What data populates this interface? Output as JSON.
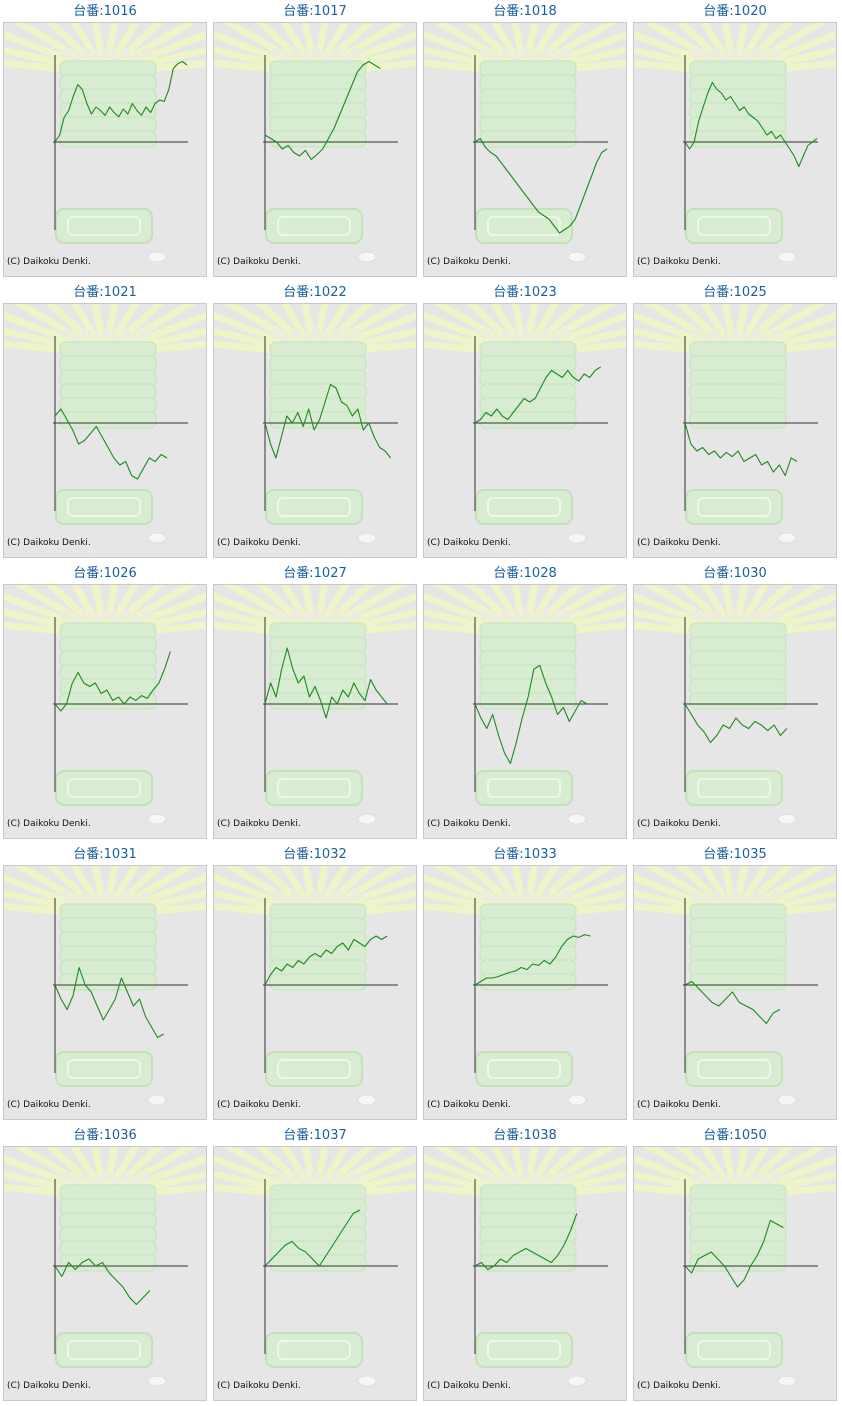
{
  "copyright": "(C) Daikoku Denki.",
  "colors": {
    "title": "#1a5fa0",
    "line": "#1c8a1c",
    "axis": "#333333",
    "panel": "#e6e6e6",
    "rays": "#eef5c8",
    "machine": "#d7ecd1"
  },
  "chart_data": [
    {
      "type": "line",
      "title": "台番:1016",
      "values": [
        0,
        0.1,
        0.35,
        0.45,
        0.65,
        0.82,
        0.75,
        0.55,
        0.4,
        0.5,
        0.45,
        0.38,
        0.5,
        0.42,
        0.36,
        0.47,
        0.4,
        0.55,
        0.45,
        0.38,
        0.5,
        0.42,
        0.55,
        0.6,
        0.58,
        0.75,
        1.05,
        1.12,
        1.15,
        1.1
      ]
    },
    {
      "type": "line",
      "title": "台番:1017",
      "values": [
        0.1,
        0.05,
        0.0,
        -0.1,
        -0.05,
        -0.15,
        -0.2,
        -0.12,
        -0.25,
        -0.18,
        -0.1,
        0.05,
        0.2,
        0.4,
        0.6,
        0.8,
        1.0,
        1.1,
        1.15,
        1.1,
        1.05
      ]
    },
    {
      "type": "line",
      "title": "台番:1018",
      "values": [
        0.0,
        0.05,
        -0.08,
        -0.15,
        -0.2,
        -0.3,
        -0.4,
        -0.5,
        -0.6,
        -0.7,
        -0.8,
        -0.9,
        -1.0,
        -1.05,
        -1.1,
        -1.2,
        -1.3,
        -1.25,
        -1.2,
        -1.1,
        -0.9,
        -0.7,
        -0.5,
        -0.3,
        -0.15,
        -0.1
      ]
    },
    {
      "type": "line",
      "title": "台番:1020",
      "values": [
        0,
        -0.1,
        0.0,
        0.3,
        0.5,
        0.7,
        0.85,
        0.75,
        0.7,
        0.6,
        0.65,
        0.55,
        0.45,
        0.5,
        0.4,
        0.35,
        0.3,
        0.2,
        0.1,
        0.15,
        0.05,
        0.1,
        0.0,
        -0.1,
        -0.2,
        -0.35,
        -0.2,
        -0.05,
        0.0,
        0.05
      ]
    },
    {
      "type": "line",
      "title": "台番:1021",
      "values": [
        0.1,
        0.2,
        0.05,
        -0.1,
        -0.3,
        -0.25,
        -0.15,
        -0.05,
        -0.2,
        -0.35,
        -0.5,
        -0.6,
        -0.55,
        -0.75,
        -0.8,
        -0.65,
        -0.5,
        -0.55,
        -0.45,
        -0.5
      ]
    },
    {
      "type": "line",
      "title": "台番:1022",
      "values": [
        0,
        -0.3,
        -0.5,
        -0.2,
        0.1,
        0.0,
        0.15,
        -0.05,
        0.2,
        -0.1,
        0.05,
        0.3,
        0.55,
        0.5,
        0.3,
        0.25,
        0.1,
        0.2,
        -0.1,
        0.0,
        -0.2,
        -0.35,
        -0.4,
        -0.5
      ]
    },
    {
      "type": "line",
      "title": "台番:1023",
      "values": [
        0,
        0.05,
        0.15,
        0.1,
        0.2,
        0.1,
        0.05,
        0.15,
        0.25,
        0.35,
        0.3,
        0.35,
        0.5,
        0.65,
        0.75,
        0.7,
        0.65,
        0.75,
        0.65,
        0.6,
        0.7,
        0.65,
        0.75,
        0.8
      ]
    },
    {
      "type": "line",
      "title": "台番:1025",
      "values": [
        0,
        -0.3,
        -0.4,
        -0.35,
        -0.45,
        -0.4,
        -0.5,
        -0.42,
        -0.48,
        -0.4,
        -0.55,
        -0.5,
        -0.45,
        -0.6,
        -0.55,
        -0.7,
        -0.6,
        -0.75,
        -0.5,
        -0.55
      ]
    },
    {
      "type": "line",
      "title": "台番:1026",
      "values": [
        0,
        -0.1,
        0.0,
        0.3,
        0.45,
        0.3,
        0.25,
        0.3,
        0.15,
        0.2,
        0.05,
        0.1,
        0.0,
        0.1,
        0.05,
        0.12,
        0.08,
        0.2,
        0.3,
        0.5,
        0.75
      ]
    },
    {
      "type": "line",
      "title": "台番:1027",
      "values": [
        0,
        0.3,
        0.1,
        0.5,
        0.8,
        0.5,
        0.3,
        0.4,
        0.1,
        0.25,
        0.05,
        -0.2,
        0.1,
        0.0,
        0.2,
        0.1,
        0.3,
        0.15,
        0.05,
        0.35,
        0.2,
        0.1,
        0.0
      ]
    },
    {
      "type": "line",
      "title": "台番:1028",
      "values": [
        0,
        -0.2,
        -0.35,
        -0.15,
        -0.45,
        -0.7,
        -0.85,
        -0.55,
        -0.2,
        0.1,
        0.5,
        0.55,
        0.3,
        0.1,
        -0.15,
        -0.05,
        -0.25,
        -0.1,
        0.05,
        0.0
      ]
    },
    {
      "type": "line",
      "title": "台番:1030",
      "values": [
        0,
        -0.15,
        -0.3,
        -0.4,
        -0.55,
        -0.45,
        -0.3,
        -0.35,
        -0.2,
        -0.3,
        -0.35,
        -0.25,
        -0.3,
        -0.38,
        -0.3,
        -0.45,
        -0.35
      ]
    },
    {
      "type": "line",
      "title": "台番:1031",
      "values": [
        0,
        -0.2,
        -0.35,
        -0.15,
        0.25,
        0.0,
        -0.1,
        -0.3,
        -0.5,
        -0.35,
        -0.2,
        0.1,
        -0.1,
        -0.3,
        -0.2,
        -0.45,
        -0.6,
        -0.75,
        -0.7
      ]
    },
    {
      "type": "line",
      "title": "台番:1032",
      "values": [
        0,
        0.15,
        0.25,
        0.2,
        0.3,
        0.25,
        0.35,
        0.3,
        0.4,
        0.45,
        0.4,
        0.5,
        0.45,
        0.55,
        0.6,
        0.5,
        0.65,
        0.6,
        0.55,
        0.65,
        0.7,
        0.65,
        0.7
      ]
    },
    {
      "type": "line",
      "title": "台番:1033",
      "values": [
        0,
        0.05,
        0.1,
        0.1,
        0.12,
        0.15,
        0.18,
        0.2,
        0.25,
        0.22,
        0.3,
        0.28,
        0.35,
        0.3,
        0.4,
        0.55,
        0.65,
        0.7,
        0.68,
        0.72,
        0.7
      ]
    },
    {
      "type": "line",
      "title": "台番:1035",
      "values": [
        0,
        0.05,
        -0.05,
        -0.15,
        -0.25,
        -0.3,
        -0.2,
        -0.1,
        -0.25,
        -0.3,
        -0.35,
        -0.45,
        -0.55,
        -0.4,
        -0.35
      ]
    },
    {
      "type": "line",
      "title": "台番:1036",
      "values": [
        0,
        -0.15,
        0.05,
        -0.05,
        0.05,
        0.1,
        0.0,
        0.05,
        -0.1,
        -0.2,
        -0.3,
        -0.45,
        -0.55,
        -0.45,
        -0.35
      ]
    },
    {
      "type": "line",
      "title": "台番:1037",
      "values": [
        0,
        0.1,
        0.2,
        0.3,
        0.35,
        0.25,
        0.2,
        0.1,
        0.0,
        0.15,
        0.3,
        0.45,
        0.6,
        0.75,
        0.8
      ]
    },
    {
      "type": "line",
      "title": "台番:1038",
      "values": [
        0,
        0.05,
        -0.05,
        0.0,
        0.1,
        0.05,
        0.15,
        0.2,
        0.25,
        0.2,
        0.15,
        0.1,
        0.05,
        0.15,
        0.3,
        0.5,
        0.75
      ]
    },
    {
      "type": "line",
      "title": "台番:1050",
      "values": [
        0,
        -0.1,
        0.1,
        0.15,
        0.2,
        0.1,
        0.0,
        -0.15,
        -0.3,
        -0.2,
        0.0,
        0.15,
        0.35,
        0.65,
        0.6,
        0.55
      ]
    }
  ]
}
